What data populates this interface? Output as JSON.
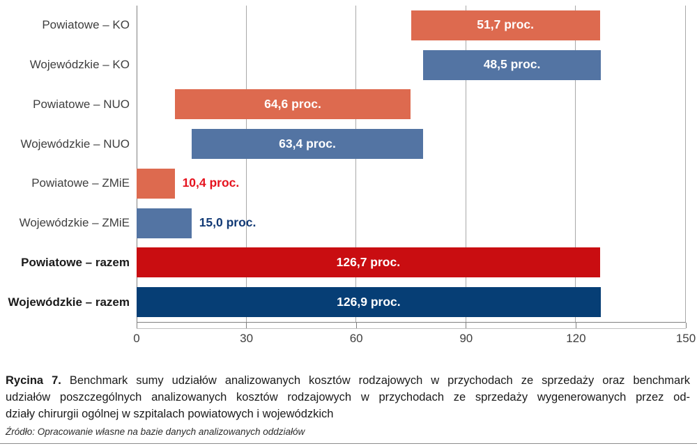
{
  "chart_data": {
    "type": "bar",
    "orientation": "horizontal",
    "xlim": [
      0,
      150
    ],
    "gridlines": [
      0,
      30,
      60,
      90,
      120,
      150
    ],
    "x_ticks": [
      "0",
      "30",
      "60",
      "90",
      "120",
      "150"
    ],
    "grid": "vertical-on",
    "unit": "proc.",
    "colors": {
      "powiatowe_segment": "#dd6a4f",
      "wojewodzkie_segment": "#5374a3",
      "powiatowe_total": "#c90d11",
      "wojewodzkie_total": "#063e75",
      "outside_label_red": "#e5121d",
      "outside_label_navy": "#123a75",
      "inside_label": "#ffffff"
    },
    "rows": [
      {
        "category": "Powiatowe – KO",
        "start": 75.0,
        "end": 126.7,
        "value": 51.7,
        "value_label": "51,7 proc.",
        "color": "#dd6a4f",
        "label_inside": true,
        "bold_category": false,
        "value_color": "#ffffff"
      },
      {
        "category": "Wojewódzkie – KO",
        "start": 78.4,
        "end": 126.9,
        "value": 48.5,
        "value_label": "48,5 proc.",
        "color": "#5374a3",
        "label_inside": true,
        "bold_category": false,
        "value_color": "#ffffff"
      },
      {
        "category": "Powiatowe – NUO",
        "start": 10.4,
        "end": 75.0,
        "value": 64.6,
        "value_label": "64,6 proc.",
        "color": "#dd6a4f",
        "label_inside": true,
        "bold_category": false,
        "value_color": "#ffffff"
      },
      {
        "category": "Wojewódzkie – NUO",
        "start": 15.0,
        "end": 78.4,
        "value": 63.4,
        "value_label": "63,4 proc.",
        "color": "#5374a3",
        "label_inside": true,
        "bold_category": false,
        "value_color": "#ffffff"
      },
      {
        "category": "Powiatowe – ZMiE",
        "start": 0.0,
        "end": 10.4,
        "value": 10.4,
        "value_label": "10,4 proc.",
        "color": "#dd6a4f",
        "label_inside": false,
        "bold_category": false,
        "value_color": "#e5121d"
      },
      {
        "category": "Wojewódzkie – ZMiE",
        "start": 0.0,
        "end": 15.0,
        "value": 15.0,
        "value_label": "15,0 proc.",
        "color": "#5374a3",
        "label_inside": false,
        "bold_category": false,
        "value_color": "#123a75"
      },
      {
        "category": "Powiatowe – razem",
        "start": 0.0,
        "end": 126.7,
        "value": 126.7,
        "value_label": "126,7 proc.",
        "color": "#c90d11",
        "label_inside": true,
        "bold_category": true,
        "value_color": "#ffffff"
      },
      {
        "category": "Wojewódzkie – razem",
        "start": 0.0,
        "end": 126.9,
        "value": 126.9,
        "value_label": "126,9 proc.",
        "color": "#063e75",
        "label_inside": true,
        "bold_category": true,
        "value_color": "#ffffff"
      }
    ]
  },
  "caption": {
    "prefix": "Rycina 7.",
    "line1": "Benchmark sumy udziałów analizowanych kosztów rodzajowych w przychodach ze sprzedaży oraz benchmark",
    "line2": "udziałów poszczególnych analizowanych kosztów rodzajowych w przychodach ze sprzedaży wygenerowanych przez od-",
    "line3": "działy chirurgii ogólnej w szpitalach powiatowych i wojewódzkich"
  },
  "source": "Źródło: Opracowanie własne na bazie danych analizowanych oddziałów"
}
